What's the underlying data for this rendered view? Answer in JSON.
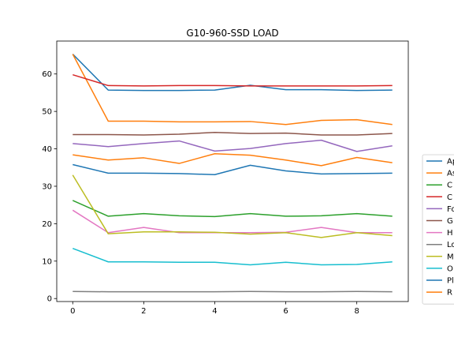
{
  "chart_data": {
    "type": "line",
    "title": "G10-960-SSD LOAD",
    "xlabel": "",
    "ylabel": "",
    "xlim": [
      -0.45,
      9.45
    ],
    "ylim": [
      -0.8,
      68.8
    ],
    "x_ticks": [
      0,
      2,
      4,
      6,
      8
    ],
    "y_ticks": [
      0,
      10,
      20,
      30,
      40,
      50,
      60
    ],
    "grid": false,
    "legend": {
      "placement": "right",
      "clipped": true
    },
    "x": [
      0,
      1,
      2,
      3,
      4,
      5,
      6,
      7,
      8,
      9
    ],
    "series": [
      {
        "name": "Ap",
        "color": "#1f77b4",
        "values": [
          65.3,
          55.7,
          55.6,
          55.6,
          55.7,
          57.0,
          55.8,
          55.8,
          55.6,
          55.7
        ]
      },
      {
        "name": "As",
        "color": "#ff7f0e",
        "values": [
          65.3,
          47.4,
          47.4,
          47.2,
          47.2,
          47.3,
          46.5,
          47.6,
          47.8,
          46.5
        ]
      },
      {
        "name": "C",
        "color": "#2ca02c",
        "values": [
          26.2,
          22.0,
          22.7,
          22.1,
          21.9,
          22.7,
          22.0,
          22.1,
          22.7,
          22.0
        ]
      },
      {
        "name": "C",
        "color": "#d62728",
        "values": [
          59.8,
          56.9,
          56.8,
          56.9,
          56.9,
          56.8,
          56.8,
          56.8,
          56.8,
          56.9
        ]
      },
      {
        "name": "Fo",
        "color": "#9467bd",
        "values": [
          41.4,
          40.6,
          41.4,
          42.1,
          39.4,
          40.1,
          41.4,
          42.3,
          39.3,
          40.8
        ]
      },
      {
        "name": "G",
        "color": "#8c564b",
        "values": [
          43.8,
          43.8,
          43.7,
          43.9,
          44.4,
          44.1,
          44.2,
          43.7,
          43.7,
          44.1
        ]
      },
      {
        "name": "H",
        "color": "#e377c2",
        "values": [
          23.6,
          17.6,
          19.0,
          17.6,
          17.6,
          17.6,
          17.7,
          19.0,
          17.6,
          17.6
        ]
      },
      {
        "name": "Lo",
        "color": "#7f7f7f",
        "values": [
          1.9,
          1.8,
          1.8,
          1.8,
          1.8,
          1.9,
          1.8,
          1.8,
          1.9,
          1.8
        ]
      },
      {
        "name": "M",
        "color": "#bcbd22",
        "values": [
          33.0,
          17.3,
          17.8,
          17.8,
          17.7,
          17.2,
          17.6,
          16.3,
          17.6,
          16.8
        ]
      },
      {
        "name": "O",
        "color": "#17becf",
        "values": [
          13.4,
          9.8,
          9.8,
          9.7,
          9.7,
          9.0,
          9.7,
          9.0,
          9.1,
          9.8
        ]
      },
      {
        "name": "Pl",
        "color": "#1f77b4",
        "values": [
          35.8,
          33.5,
          33.5,
          33.4,
          33.1,
          35.6,
          34.1,
          33.3,
          33.4,
          33.5
        ]
      },
      {
        "name": "R",
        "color": "#ff7f0e",
        "values": [
          38.4,
          37.0,
          37.6,
          36.1,
          38.7,
          38.3,
          37.0,
          35.5,
          37.7,
          36.3
        ]
      }
    ]
  }
}
